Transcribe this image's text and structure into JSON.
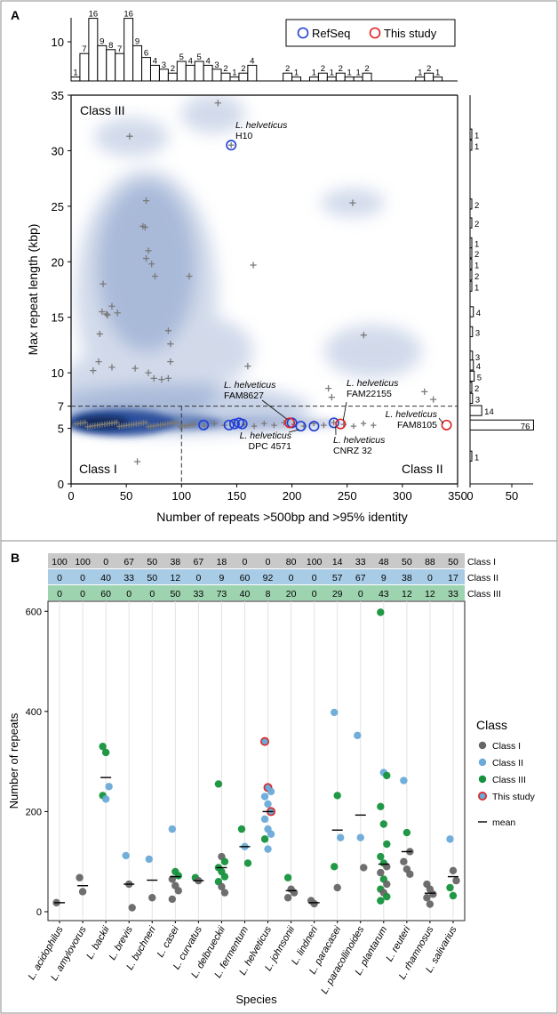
{
  "panel_a_label": "A",
  "panel_b_label": "B",
  "chart_data": [
    {
      "type": "scatter",
      "panel": "A",
      "xlabel": "Number of repeats >500bp and >95% identity",
      "ylabel": "Max repeat length (kbp)",
      "xlim": [
        0,
        350
      ],
      "ylim": [
        0,
        35
      ],
      "xticks": [
        0,
        50,
        100,
        150,
        200,
        250,
        300,
        350
      ],
      "yticks": [
        0,
        5,
        7,
        10,
        15,
        20,
        25,
        30,
        35
      ],
      "class_labels": {
        "top_left": "Class III",
        "bottom_left": "Class I",
        "bottom_right": "Class II"
      },
      "thresholds": {
        "y_dashed": 7,
        "x_dashed": 100
      },
      "legend": [
        "RefSeq",
        "This study"
      ],
      "legend_colors": {
        "refseq": "#1f3fd6",
        "this_study": "#e02020"
      },
      "density_color": "#2a4f9b",
      "point_color": "#7a7a7a",
      "refseq_points": [
        [
          145,
          30.5
        ],
        [
          120,
          5.3
        ],
        [
          143,
          5.3
        ],
        [
          148,
          5.4
        ],
        [
          152,
          5.5
        ],
        [
          155,
          5.4
        ],
        [
          208,
          5.2
        ],
        [
          220,
          5.2
        ],
        [
          238,
          5.5
        ],
        [
          200,
          5.5
        ]
      ],
      "this_study_points": [
        [
          198,
          5.5
        ],
        [
          244,
          5.4
        ],
        [
          340,
          5.3
        ]
      ],
      "grey_points": [
        [
          133,
          34.3
        ],
        [
          53,
          31.3
        ],
        [
          68,
          25.5
        ],
        [
          65,
          23.2
        ],
        [
          67,
          23.1
        ],
        [
          70,
          21
        ],
        [
          68,
          20.3
        ],
        [
          73,
          19.8
        ],
        [
          76,
          18.7
        ],
        [
          107,
          18.7
        ],
        [
          165,
          19.7
        ],
        [
          29,
          18
        ],
        [
          37,
          16
        ],
        [
          28,
          15.5
        ],
        [
          33,
          15.2
        ],
        [
          42,
          15.4
        ],
        [
          32,
          15.3
        ],
        [
          88,
          13.8
        ],
        [
          90,
          12.6
        ],
        [
          26,
          13.5
        ],
        [
          25,
          11
        ],
        [
          20,
          10.2
        ],
        [
          37,
          10.5
        ],
        [
          58,
          10.4
        ],
        [
          70,
          10
        ],
        [
          90,
          11
        ],
        [
          160,
          10.6
        ],
        [
          255,
          25.3
        ],
        [
          265,
          13.4
        ],
        [
          233,
          8.6
        ],
        [
          320,
          8.3
        ],
        [
          328,
          7.6
        ],
        [
          60,
          2.0
        ],
        [
          88,
          9.5
        ],
        [
          82,
          9.4
        ],
        [
          75,
          9.5
        ],
        [
          236,
          7.8
        ]
      ],
      "histogram_top": {
        "bins_x_centers": [
          4,
          12,
          20,
          28,
          36,
          44,
          52,
          60,
          68,
          76,
          84,
          92,
          100,
          108,
          116,
          124,
          132,
          140,
          148,
          156,
          164,
          196,
          204,
          220,
          228,
          236,
          244,
          252,
          260,
          268,
          316,
          324,
          332
        ],
        "counts": [
          1,
          7,
          16,
          9,
          8,
          7,
          16,
          9,
          6,
          4,
          3,
          2,
          5,
          4,
          5,
          4,
          3,
          2,
          1,
          2,
          4,
          2,
          1,
          1,
          2,
          1,
          2,
          1,
          1,
          2,
          1,
          2,
          1
        ],
        "ytick": 10
      },
      "histogram_right": {
        "bins_y_centers": [
          31.5,
          30.5,
          25.2,
          23.5,
          21.7,
          20.8,
          19.8,
          18.8,
          17.8,
          15.5,
          13.7,
          11.5,
          10.7,
          9.7,
          8.7,
          7.7,
          6.6,
          5.3,
          2.5
        ],
        "counts": [
          1,
          1,
          2,
          2,
          1,
          2,
          1,
          2,
          1,
          4,
          3,
          3,
          4,
          5,
          2,
          3,
          14,
          76,
          1
        ],
        "xticks": [
          0,
          50
        ]
      },
      "annotations": [
        {
          "text_species": "L. helveticus",
          "text_strain": "H10"
        },
        {
          "text_species": "L. helveticus",
          "text_strain": "FAM8627"
        },
        {
          "text_species": "L. helveticus",
          "text_strain": "FAM22155"
        },
        {
          "text_species": "L. helveticus",
          "text_strain": "FAM8105"
        },
        {
          "text_species": "L. helveticus",
          "text_strain": "DPC 4571"
        },
        {
          "text_species": "L. helveticus",
          "text_strain": "CNRZ 32"
        }
      ]
    },
    {
      "type": "scatter",
      "panel": "B",
      "xlabel": "Species",
      "ylabel": "Number of repeats",
      "ylim": [
        0,
        620
      ],
      "yticks": [
        0,
        200,
        400,
        600
      ],
      "categories": [
        "L. acidophilus",
        "L. amylovorus",
        "L. backii",
        "L. brevis",
        "L. buchneri",
        "L. casei",
        "L. curvatus",
        "L. delbrueckii",
        "L. fermentum",
        "L. helveticus",
        "L. johnsonii",
        "L. lindneri",
        "L. paracasei",
        "L. paracollinoides",
        "L. plantarum",
        "L. reuteri",
        "L. rhamnosus",
        "L. salivarius"
      ],
      "class_table": {
        "rows": [
          {
            "name": "Class I",
            "color": "#c9c9c9",
            "values": [
              "100",
              "100",
              "0",
              "67",
              "50",
              "38",
              "67",
              "18",
              "0",
              "0",
              "80",
              "100",
              "14",
              "33",
              "48",
              "50",
              "88",
              "50"
            ]
          },
          {
            "name": "Class II",
            "color": "#a9cce6",
            "values": [
              "0",
              "0",
              "40",
              "33",
              "50",
              "12",
              "0",
              "9",
              "60",
              "92",
              "0",
              "0",
              "57",
              "67",
              "9",
              "38",
              "0",
              "17"
            ]
          },
          {
            "name": "Class III",
            "color": "#9ed3b0",
            "values": [
              "0",
              "0",
              "60",
              "0",
              "0",
              "50",
              "33",
              "73",
              "40",
              "8",
              "20",
              "0",
              "29",
              "0",
              "43",
              "12",
              "12",
              "33"
            ]
          }
        ]
      },
      "legend_title": "Class",
      "legend_items": [
        "Class I",
        "Class II",
        "Class III",
        "This study",
        "mean"
      ],
      "class_colors": {
        "Class I": "#666666",
        "Class II": "#6aaad8",
        "Class III": "#14923c",
        "This study": "#e02020"
      },
      "means": [
        18,
        52,
        268,
        55,
        63,
        70,
        62,
        88,
        130,
        200,
        42,
        18,
        163,
        193,
        95,
        120,
        37,
        70
      ],
      "points": [
        [
          [
            18,
            "I"
          ]
        ],
        [
          [
            68,
            "I"
          ],
          [
            40,
            "I"
          ]
        ],
        [
          [
            330,
            "III"
          ],
          [
            318,
            "III"
          ],
          [
            250,
            "II"
          ],
          [
            232,
            "III"
          ],
          [
            225,
            "II"
          ]
        ],
        [
          [
            112,
            "II"
          ],
          [
            55,
            "I"
          ],
          [
            8,
            "I"
          ]
        ],
        [
          [
            105,
            "II"
          ],
          [
            28,
            "I"
          ]
        ],
        [
          [
            165,
            "II"
          ],
          [
            80,
            "III"
          ],
          [
            72,
            "III"
          ],
          [
            65,
            "I"
          ],
          [
            52,
            "I"
          ],
          [
            42,
            "I"
          ],
          [
            25,
            "I"
          ]
        ],
        [
          [
            68,
            "III"
          ],
          [
            62,
            "I"
          ]
        ],
        [
          [
            255,
            "III"
          ],
          [
            110,
            "I"
          ],
          [
            100,
            "III"
          ],
          [
            88,
            "III"
          ],
          [
            80,
            "III"
          ],
          [
            70,
            "III"
          ],
          [
            60,
            "III"
          ],
          [
            50,
            "I"
          ],
          [
            38,
            "I"
          ]
        ],
        [
          [
            165,
            "III"
          ],
          [
            130,
            "II"
          ],
          [
            97,
            "III"
          ]
        ],
        [
          [
            340,
            "T"
          ],
          [
            248,
            "T"
          ],
          [
            240,
            "II"
          ],
          [
            230,
            "II"
          ],
          [
            215,
            "II"
          ],
          [
            200,
            "T"
          ],
          [
            185,
            "II"
          ],
          [
            165,
            "II"
          ],
          [
            155,
            "II"
          ],
          [
            145,
            "III"
          ],
          [
            125,
            "II"
          ]
        ],
        [
          [
            68,
            "III"
          ],
          [
            45,
            "I"
          ],
          [
            38,
            "I"
          ],
          [
            28,
            "I"
          ]
        ],
        [
          [
            22,
            "I"
          ],
          [
            16,
            "I"
          ]
        ],
        [
          [
            398,
            "II"
          ],
          [
            232,
            "III"
          ],
          [
            148,
            "II"
          ],
          [
            90,
            "III"
          ],
          [
            48,
            "I"
          ]
        ],
        [
          [
            352,
            "II"
          ],
          [
            148,
            "II"
          ],
          [
            88,
            "I"
          ]
        ],
        [
          [
            598,
            "III"
          ],
          [
            278,
            "II"
          ],
          [
            272,
            "III"
          ],
          [
            210,
            "III"
          ],
          [
            175,
            "III"
          ],
          [
            135,
            "III"
          ],
          [
            110,
            "III"
          ],
          [
            97,
            "III"
          ],
          [
            90,
            "I"
          ],
          [
            78,
            "I"
          ],
          [
            65,
            "III"
          ],
          [
            55,
            "I"
          ],
          [
            45,
            "III"
          ],
          [
            38,
            "I"
          ],
          [
            30,
            "III"
          ],
          [
            22,
            "III"
          ]
        ],
        [
          [
            262,
            "II"
          ],
          [
            158,
            "III"
          ],
          [
            120,
            "I"
          ],
          [
            100,
            "I"
          ],
          [
            85,
            "I"
          ],
          [
            75,
            "I"
          ]
        ],
        [
          [
            55,
            "I"
          ],
          [
            45,
            "I"
          ],
          [
            35,
            "I"
          ],
          [
            28,
            "I"
          ],
          [
            15,
            "I"
          ]
        ],
        [
          [
            145,
            "II"
          ],
          [
            82,
            "I"
          ],
          [
            62,
            "I"
          ],
          [
            48,
            "III"
          ],
          [
            32,
            "III"
          ]
        ]
      ]
    }
  ]
}
